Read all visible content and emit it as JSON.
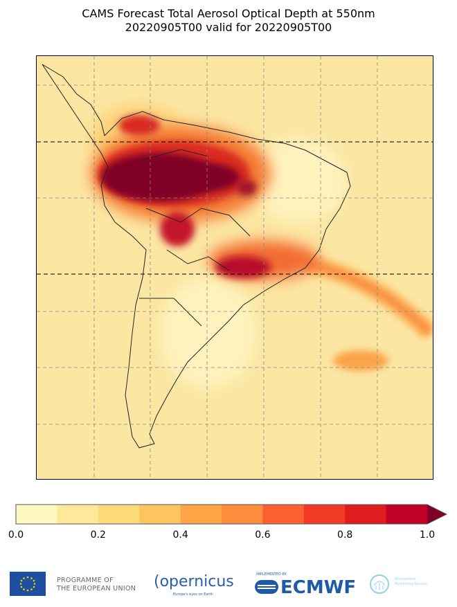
{
  "title": {
    "line1": "CAMS Forecast Total Aerosol Optical Depth at 550nm",
    "line2": "20220905T00 valid for 20220905T00"
  },
  "colorbar": {
    "ticks": [
      "0.0",
      "0.2",
      "0.4",
      "0.6",
      "0.8",
      "1.0"
    ],
    "bins": [
      0.0,
      0.1,
      0.2,
      0.3,
      0.4,
      0.5,
      0.6,
      0.7,
      0.8,
      0.9,
      1.0
    ],
    "colors": [
      "#fef9c0",
      "#fee99a",
      "#fedb7a",
      "#fec460",
      "#fea446",
      "#fd8c3c",
      "#fc5f30",
      "#f03a26",
      "#e01c1e",
      "#c00024"
    ],
    "extend_color": "#800026",
    "extend": "max"
  },
  "logos": {
    "eu_text_1": "PROGRAMME OF",
    "eu_text_2": "THE EUROPEAN UNION",
    "copernicus": "opernicus",
    "copernicus_tagline": "Europe's eyes on Earth",
    "implemented_by": "IMPLEMENTED BY",
    "ecmwf": "ECMWF",
    "cams_1": "Atmosphere",
    "cams_2": "Monitoring Service"
  }
}
